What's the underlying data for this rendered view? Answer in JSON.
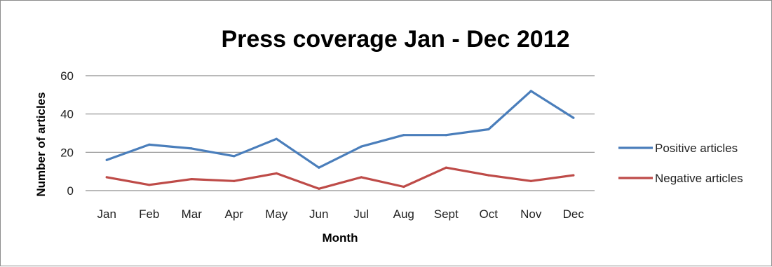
{
  "chart_data": {
    "type": "line",
    "title": "Press coverage Jan - Dec 2012",
    "xlabel": "Month",
    "ylabel": "Number of articles",
    "categories": [
      "Jan",
      "Feb",
      "Mar",
      "Apr",
      "May",
      "Jun",
      "Jul",
      "Aug",
      "Sept",
      "Oct",
      "Nov",
      "Dec"
    ],
    "y_ticks": [
      "0",
      "20",
      "40",
      "60"
    ],
    "ylim": [
      0,
      60
    ],
    "grid": true,
    "legend_position": "right",
    "series": [
      {
        "name": "Positive articles",
        "color": "#4a7ebb",
        "values": [
          16,
          24,
          22,
          18,
          27,
          12,
          23,
          29,
          29,
          32,
          52,
          38
        ]
      },
      {
        "name": "Negative articles",
        "color": "#be4b48",
        "values": [
          7,
          3,
          6,
          5,
          9,
          1,
          7,
          2,
          12,
          8,
          5,
          8
        ]
      }
    ]
  }
}
